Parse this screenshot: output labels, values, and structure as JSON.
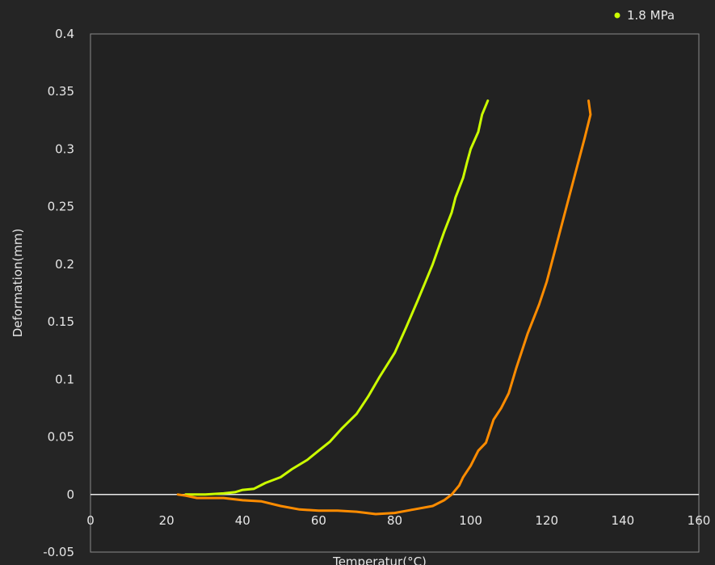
{
  "chart_data": {
    "type": "line",
    "xlabel": "Temperatur(°C)",
    "ylabel": "Deformation(mm)",
    "xlim": [
      0,
      160
    ],
    "ylim": [
      -0.05,
      0.4
    ],
    "x_ticks": [
      "0",
      "20",
      "40",
      "60",
      "80",
      "100",
      "120",
      "140",
      "160"
    ],
    "y_ticks": [
      "-0.05",
      "0",
      "0.05",
      "0.1",
      "0.15",
      "0.2",
      "0.25",
      "0.3",
      "0.35",
      "0.4"
    ],
    "legend": {
      "position": "top-right",
      "entries": [
        "1.8 MPa"
      ]
    },
    "grid": false,
    "series": [
      {
        "name": "1.8 MPa",
        "color": "#ccff00",
        "x": [
          25,
          30,
          35,
          38,
          40,
          43,
          46,
          50,
          53,
          57,
          60,
          63,
          66,
          70,
          73,
          76,
          80,
          83,
          86,
          88,
          90,
          93,
          95,
          96,
          98,
          99,
          100,
          102,
          103,
          104.5
        ],
        "y": [
          0,
          0,
          0.001,
          0.002,
          0.004,
          0.005,
          0.01,
          0.015,
          0.022,
          0.03,
          0.038,
          0.046,
          0.057,
          0.07,
          0.085,
          0.102,
          0.123,
          0.145,
          0.168,
          0.184,
          0.2,
          0.228,
          0.245,
          0.258,
          0.275,
          0.288,
          0.3,
          0.315,
          0.33,
          0.342
        ]
      },
      {
        "name": "",
        "color": "#ff8c00",
        "x": [
          23,
          25,
          28,
          30,
          35,
          40,
          45,
          50,
          55,
          60,
          65,
          70,
          75,
          80,
          85,
          90,
          93,
          95,
          97,
          98,
          100,
          102,
          104,
          106,
          108,
          110,
          112,
          115,
          118,
          120,
          122,
          124,
          126,
          128,
          130,
          131.5,
          131
        ],
        "y": [
          0,
          -0.001,
          -0.003,
          -0.003,
          -0.003,
          -0.005,
          -0.006,
          -0.01,
          -0.013,
          -0.014,
          -0.014,
          -0.015,
          -0.017,
          -0.016,
          -0.013,
          -0.01,
          -0.005,
          0,
          0.008,
          0.015,
          0.025,
          0.038,
          0.045,
          0.065,
          0.075,
          0.088,
          0.11,
          0.14,
          0.165,
          0.185,
          0.21,
          0.235,
          0.26,
          0.285,
          0.31,
          0.33,
          0.342
        ]
      }
    ]
  }
}
